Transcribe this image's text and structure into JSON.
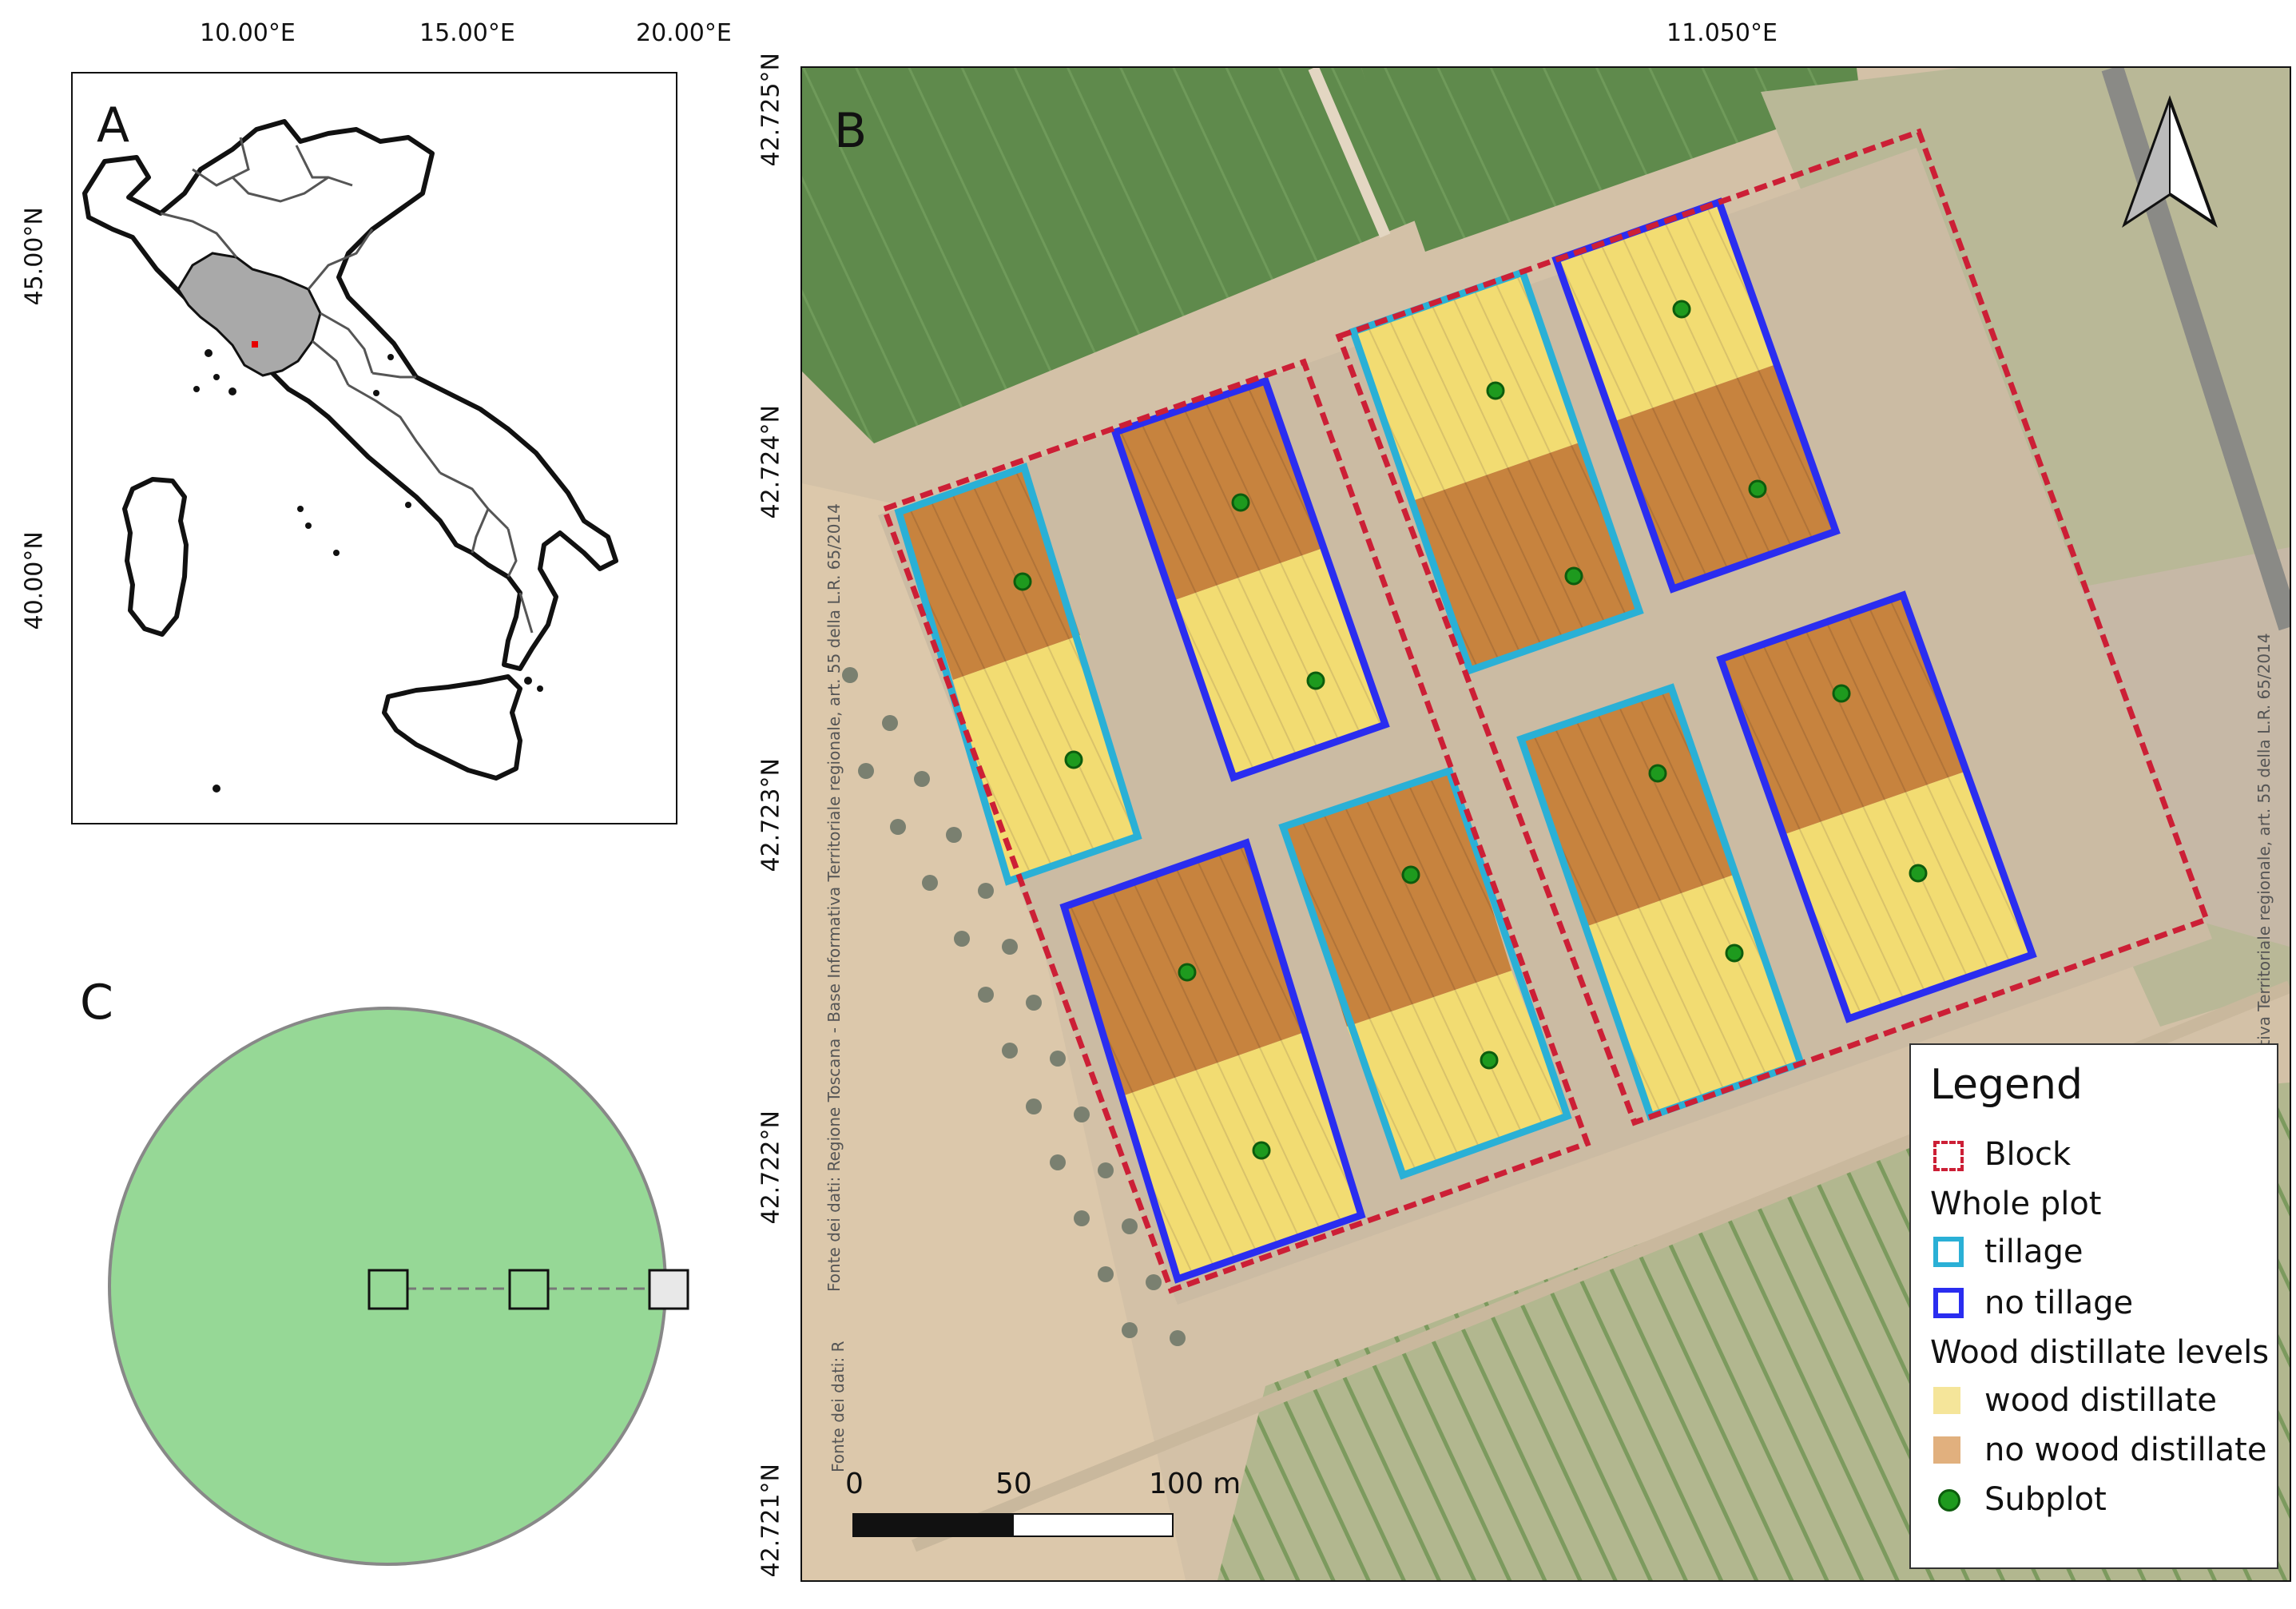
{
  "panels": {
    "a": "A",
    "b": "B",
    "c": "C"
  },
  "panel_a": {
    "lon_ticks": [
      "10.00°E",
      "15.00°E",
      "20.00°E"
    ],
    "lat_ticks": [
      "45.00°N",
      "40.00°N"
    ],
    "colors": {
      "tuscany": "#a9a9a9",
      "site": "#e60000",
      "border": "#111111",
      "region_border": "#555555"
    }
  },
  "panel_b": {
    "lon_ticks": [
      "11.050°E"
    ],
    "lat_ticks": [
      "42.725°N",
      "42.724°N",
      "42.723°N",
      "42.722°N",
      "42.721°N"
    ],
    "north_arrow": "north-arrow-icon",
    "attribution": "Fonte dei dati: Regione Toscana - Base Informativa Territoriale regionale, art. 55 della L.R. 65/2014",
    "attribution_short": "Fonte dei dati: R",
    "attribution_right": "Informativa Territoriale regionale, art. 55 della L.R. 65/2014",
    "scalebar": {
      "labels": [
        "0",
        "50",
        "100 m"
      ]
    },
    "colors": {
      "block": "#cc1f36",
      "tillage": "#2ab0d6",
      "no_tillage": "#2a2df0",
      "wood_distillate": "#f2dc72",
      "no_wood_distillate": "#c7833e",
      "subplot": "#1e9a1e"
    }
  },
  "legend": {
    "title": "Legend",
    "block": "Block",
    "whole_plot": "Whole plot",
    "tillage": "tillage",
    "no_tillage": "no tillage",
    "wdl": "Wood distillate levels",
    "wood_distillate": "wood distillate",
    "no_wood_distillate": "no wood distillate",
    "subplot": "Subplot"
  },
  "panel_c": {
    "colors": {
      "circle": "#96d896",
      "circle_border": "#888888"
    }
  }
}
